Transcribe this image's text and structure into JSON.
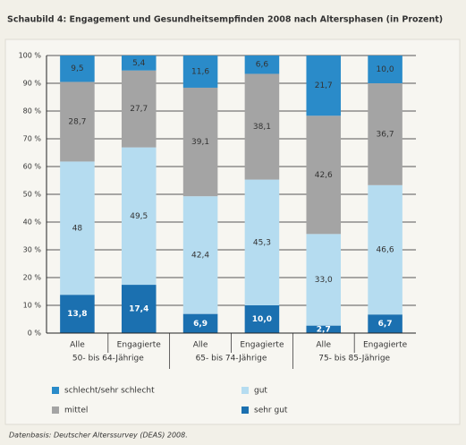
{
  "chart_data": {
    "type": "stacked_bar",
    "title": "Schaubild 4: Engagement und Gesundheitsempfinden 2008 nach Altersphasen (in Prozent)",
    "categories": [
      "Alle",
      "Engagierte",
      "Alle",
      "Engagierte",
      "Alle",
      "Engagierte"
    ],
    "groups": [
      "50- bis 64-Jährige",
      "65- bis 74-Jährige",
      "75- bis 85-Jährige"
    ],
    "series": [
      {
        "name": "sehr gut",
        "color": "#1b70b0",
        "values": [
          13.8,
          17.4,
          6.9,
          10.0,
          2.7,
          6.7
        ],
        "value_labels": [
          "13,8",
          "17,4",
          "6,9",
          "10,0",
          "2,7",
          "6,7"
        ]
      },
      {
        "name": "gut",
        "color": "#b5dcf0",
        "values": [
          48,
          49.5,
          42.4,
          45.3,
          33.0,
          46.6
        ],
        "value_labels": [
          "48",
          "49,5",
          "42,4",
          "45,3",
          "33,0",
          "46,6"
        ]
      },
      {
        "name": "mittel",
        "color": "#a4a4a4",
        "values": [
          28.7,
          27.7,
          39.1,
          38.1,
          42.6,
          36.7
        ],
        "value_labels": [
          "28,7",
          "27,7",
          "39,1",
          "38,1",
          "42,6",
          "36,7"
        ]
      },
      {
        "name": "schlecht/sehr schlecht",
        "color": "#2a8bc9",
        "values": [
          9.5,
          5.4,
          11.6,
          6.6,
          21.7,
          10.0
        ],
        "value_labels": [
          "9,5",
          "5,4",
          "11,6",
          "6,6",
          "21,7",
          "10,0"
        ]
      }
    ],
    "ylim": [
      0,
      100
    ],
    "yticks": [
      {
        "value": 0,
        "label": "0 %"
      },
      {
        "value": 10,
        "label": "10 %"
      },
      {
        "value": 20,
        "label": "20 %"
      },
      {
        "value": 30,
        "label": "30 %"
      },
      {
        "value": 40,
        "label": "40 %"
      },
      {
        "value": 50,
        "label": "50 %"
      },
      {
        "value": 60,
        "label": "60 %"
      },
      {
        "value": 70,
        "label": "70 %"
      },
      {
        "value": 80,
        "label": "80 %"
      },
      {
        "value": 90,
        "label": "90 %"
      },
      {
        "value": 100,
        "label": "100 %"
      }
    ],
    "grid": true,
    "source": "Datenbasis: Deutscher Alterssurvey (DEAS) 2008."
  }
}
